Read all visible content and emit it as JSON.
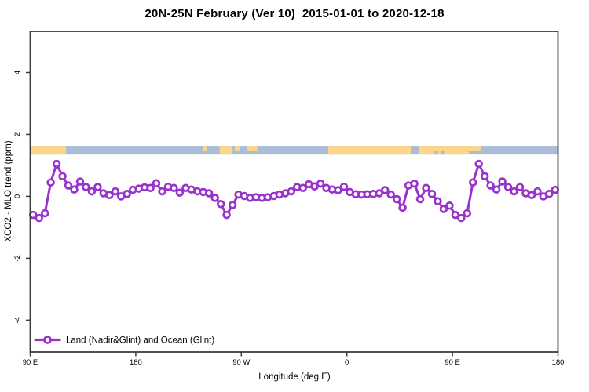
{
  "header": {
    "title": "20N-25N February (Ver 10)  2015-01-01 to 2020-12-18"
  },
  "chart_data": {
    "type": "line",
    "title": "20N-25N February (Ver 10)  2015-01-01 to 2020-12-18",
    "xlabel": "Longitude (deg E)",
    "ylabel": "XCO2 - MLO trend (ppm)",
    "xlim": [
      90,
      540
    ],
    "ylim": [
      -5.03,
      5.33
    ],
    "grid": false,
    "x_ticks": [
      {
        "value": 90,
        "label": "90 E"
      },
      {
        "value": 180,
        "label": "180"
      },
      {
        "value": 270,
        "label": "90 W"
      },
      {
        "value": 360,
        "label": "0"
      },
      {
        "value": 450,
        "label": "90 E"
      },
      {
        "value": 540,
        "label": "180"
      }
    ],
    "y_ticks": [
      {
        "value": -4,
        "label": "-4"
      },
      {
        "value": -2,
        "label": "-2"
      },
      {
        "value": 0,
        "label": "0"
      },
      {
        "value": 2,
        "label": "2"
      },
      {
        "value": 4,
        "label": "4"
      }
    ],
    "legend": {
      "position": "bottom-left",
      "entries": [
        {
          "label": "Land (Nadir&Glint) and Ocean (Glint)",
          "marker": "open-circle-on-line"
        }
      ]
    },
    "colors": {
      "series": "#9932cc",
      "marker_fill": "#ffffff",
      "ocean_strip": "#a9bcd8",
      "land_strip": "#fbd689",
      "axis": "#3c3c3c",
      "text": "#000000"
    },
    "map_strip": {
      "description": "land/ocean mask band",
      "ppm_top": 1.63,
      "ppm_bottom": 1.35,
      "ocean_range": [
        90,
        540
      ],
      "land_patches": [
        [
          90,
          120.5
        ],
        [
          251.5,
          262.5
        ],
        [
          344,
          414.5
        ],
        [
          421.5,
          464
        ]
      ],
      "land_patches_thin": [
        [
          237,
          240.5
        ],
        [
          264.5,
          268.5
        ],
        [
          274.5,
          283.5
        ],
        [
          464,
          474.5
        ]
      ],
      "ocean_notches": [
        [
          434,
          437.5
        ],
        [
          440.5,
          443.5
        ]
      ]
    },
    "series": [
      {
        "name": "Land (Nadir&Glint) and Ocean (Glint)",
        "x": [
          92.5,
          97.5,
          102.5,
          107.5,
          112.5,
          117.5,
          122.5,
          127.5,
          132.5,
          137.5,
          142.5,
          147.5,
          152.5,
          157.5,
          162.5,
          167.5,
          172.5,
          177.5,
          182.5,
          187.5,
          192.5,
          197.5,
          202.5,
          207.5,
          212.5,
          217.5,
          222.5,
          227.5,
          232.5,
          237.5,
          242.5,
          247.5,
          252.5,
          257.5,
          262.5,
          267.5,
          272.5,
          277.5,
          282.5,
          287.5,
          292.5,
          297.5,
          302.5,
          307.5,
          312.5,
          317.5,
          322.5,
          327.5,
          332.5,
          337.5,
          342.5,
          347.5,
          352.5,
          357.5,
          362.5,
          367.5,
          372.5,
          377.5,
          382.5,
          387.5,
          392.5,
          397.5,
          402.5,
          407.5,
          412.5,
          417.5,
          422.5,
          427.5,
          432.5,
          437.5,
          442.5,
          447.5,
          452.5,
          457.5,
          462.5,
          467.5,
          472.5,
          477.5,
          482.5,
          487.5,
          492.5,
          497.5,
          502.5,
          507.5,
          512.5,
          517.5,
          522.5,
          527.5,
          532.5,
          537.5
        ],
        "y": [
          -0.6,
          -0.7,
          -0.55,
          0.45,
          1.05,
          0.65,
          0.35,
          0.22,
          0.48,
          0.3,
          0.16,
          0.3,
          0.1,
          0.04,
          0.16,
          0.0,
          0.08,
          0.21,
          0.25,
          0.29,
          0.27,
          0.42,
          0.16,
          0.31,
          0.27,
          0.12,
          0.27,
          0.22,
          0.16,
          0.14,
          0.1,
          -0.05,
          -0.25,
          -0.6,
          -0.28,
          0.06,
          0.01,
          -0.05,
          -0.03,
          -0.05,
          -0.03,
          0.01,
          0.06,
          0.1,
          0.16,
          0.3,
          0.27,
          0.39,
          0.32,
          0.41,
          0.27,
          0.22,
          0.2,
          0.31,
          0.14,
          0.07,
          0.06,
          0.07,
          0.08,
          0.1,
          0.2,
          0.06,
          -0.09,
          -0.37,
          0.35,
          0.41,
          -0.09,
          0.27,
          0.08,
          -0.16,
          -0.41,
          -0.3,
          -0.6,
          -0.7,
          -0.55,
          0.45,
          1.05,
          0.65,
          0.35,
          0.22,
          0.48,
          0.3,
          0.16,
          0.3,
          0.1,
          0.04,
          0.16,
          0.0,
          0.08,
          0.21
        ]
      }
    ]
  }
}
